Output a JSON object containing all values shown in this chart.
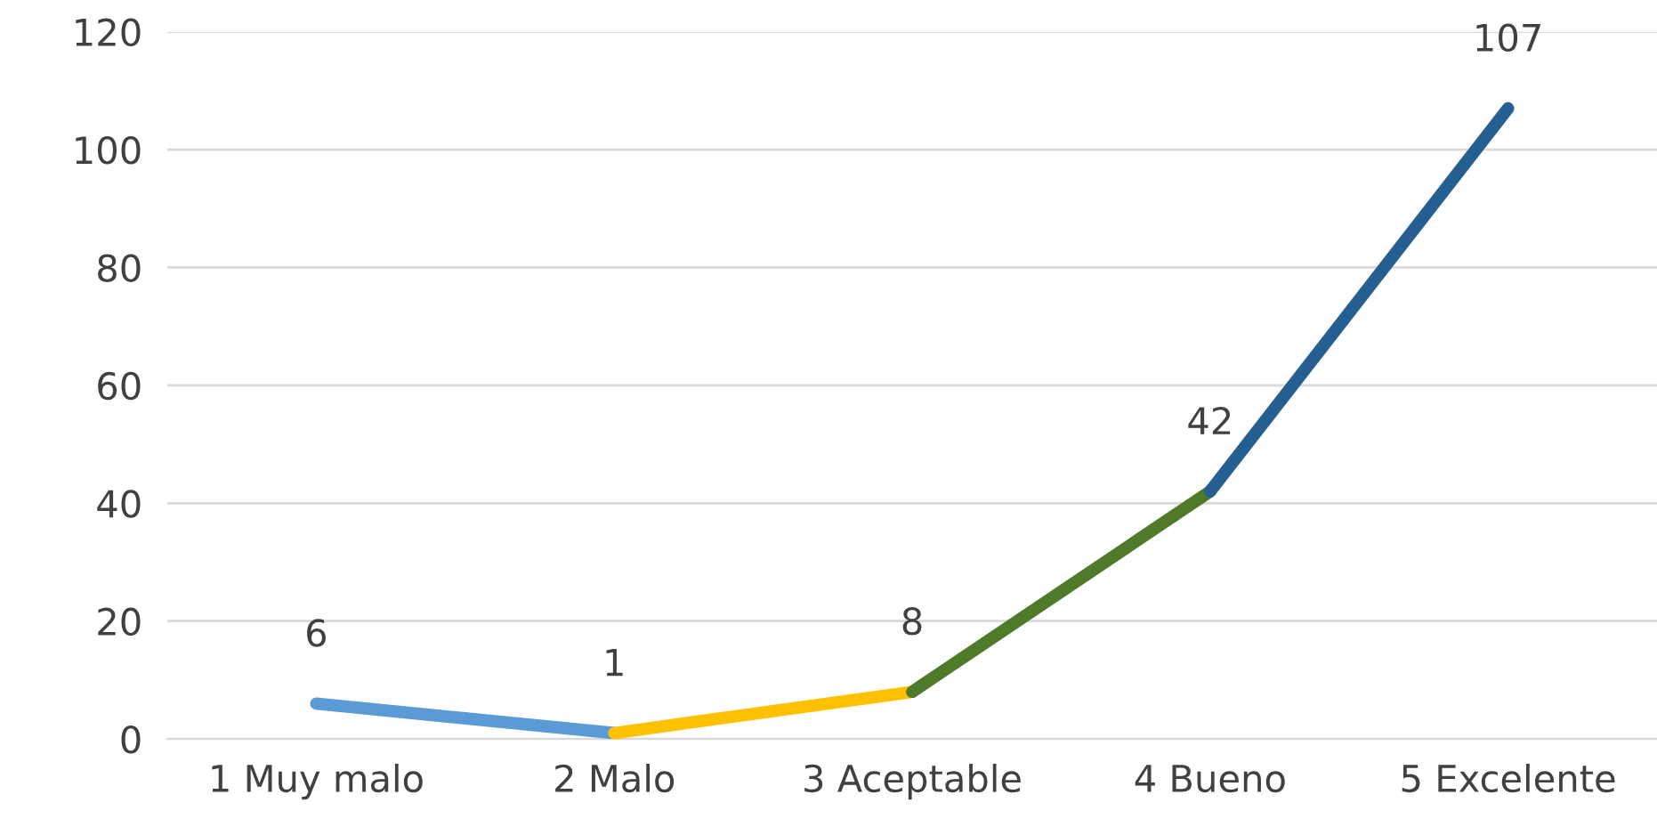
{
  "chart_data": {
    "type": "line",
    "categories": [
      "1 Muy malo",
      "2 Malo",
      "3 Aceptable",
      "4 Bueno",
      "5 Excelente"
    ],
    "series": [
      {
        "color": "#5b9bd5",
        "values": [
          6,
          1,
          null,
          null,
          null
        ],
        "value_labels": [
          "6",
          "1",
          null,
          null,
          null
        ]
      },
      {
        "color": "#ffc000",
        "values": [
          null,
          1,
          8,
          null,
          null
        ],
        "value_labels": [
          null,
          null,
          "8",
          null,
          null
        ]
      },
      {
        "color": "#4e7a2a",
        "values": [
          null,
          null,
          8,
          42,
          null
        ],
        "value_labels": [
          null,
          null,
          null,
          "42",
          null
        ]
      },
      {
        "color": "#255e91",
        "values": [
          null,
          null,
          null,
          42,
          107
        ],
        "value_labels": [
          null,
          null,
          null,
          null,
          "107"
        ]
      }
    ],
    "ylim": [
      0,
      120
    ],
    "yticks": [
      0,
      20,
      40,
      60,
      80,
      100,
      120
    ],
    "grid": "y",
    "line_style": "solid"
  }
}
